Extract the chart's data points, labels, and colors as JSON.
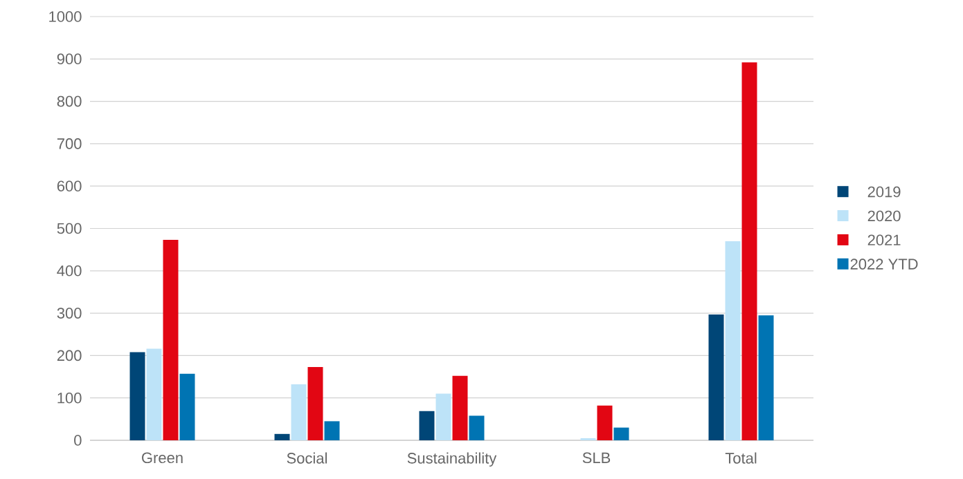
{
  "chart_data": {
    "type": "bar",
    "categories": [
      "Green",
      "Social",
      "Sustainability",
      "SLB",
      "Total"
    ],
    "series": [
      {
        "name": "2019",
        "color": "#004677",
        "values": [
          208,
          15,
          69,
          0,
          297
        ]
      },
      {
        "name": "2020",
        "color": "#bde3f8",
        "values": [
          216,
          132,
          110,
          5,
          470
        ]
      },
      {
        "name": "2021",
        "color": "#e20613",
        "values": [
          473,
          173,
          152,
          82,
          892
        ]
      },
      {
        "name": "2022 YTD",
        "color": "#0074b3",
        "values": [
          157,
          45,
          58,
          30,
          295
        ]
      }
    ],
    "ylim": [
      0,
      1000
    ],
    "yticks": [
      0,
      100,
      200,
      300,
      400,
      500,
      600,
      700,
      800,
      900,
      1000
    ],
    "grid": "y",
    "legend": "right"
  }
}
